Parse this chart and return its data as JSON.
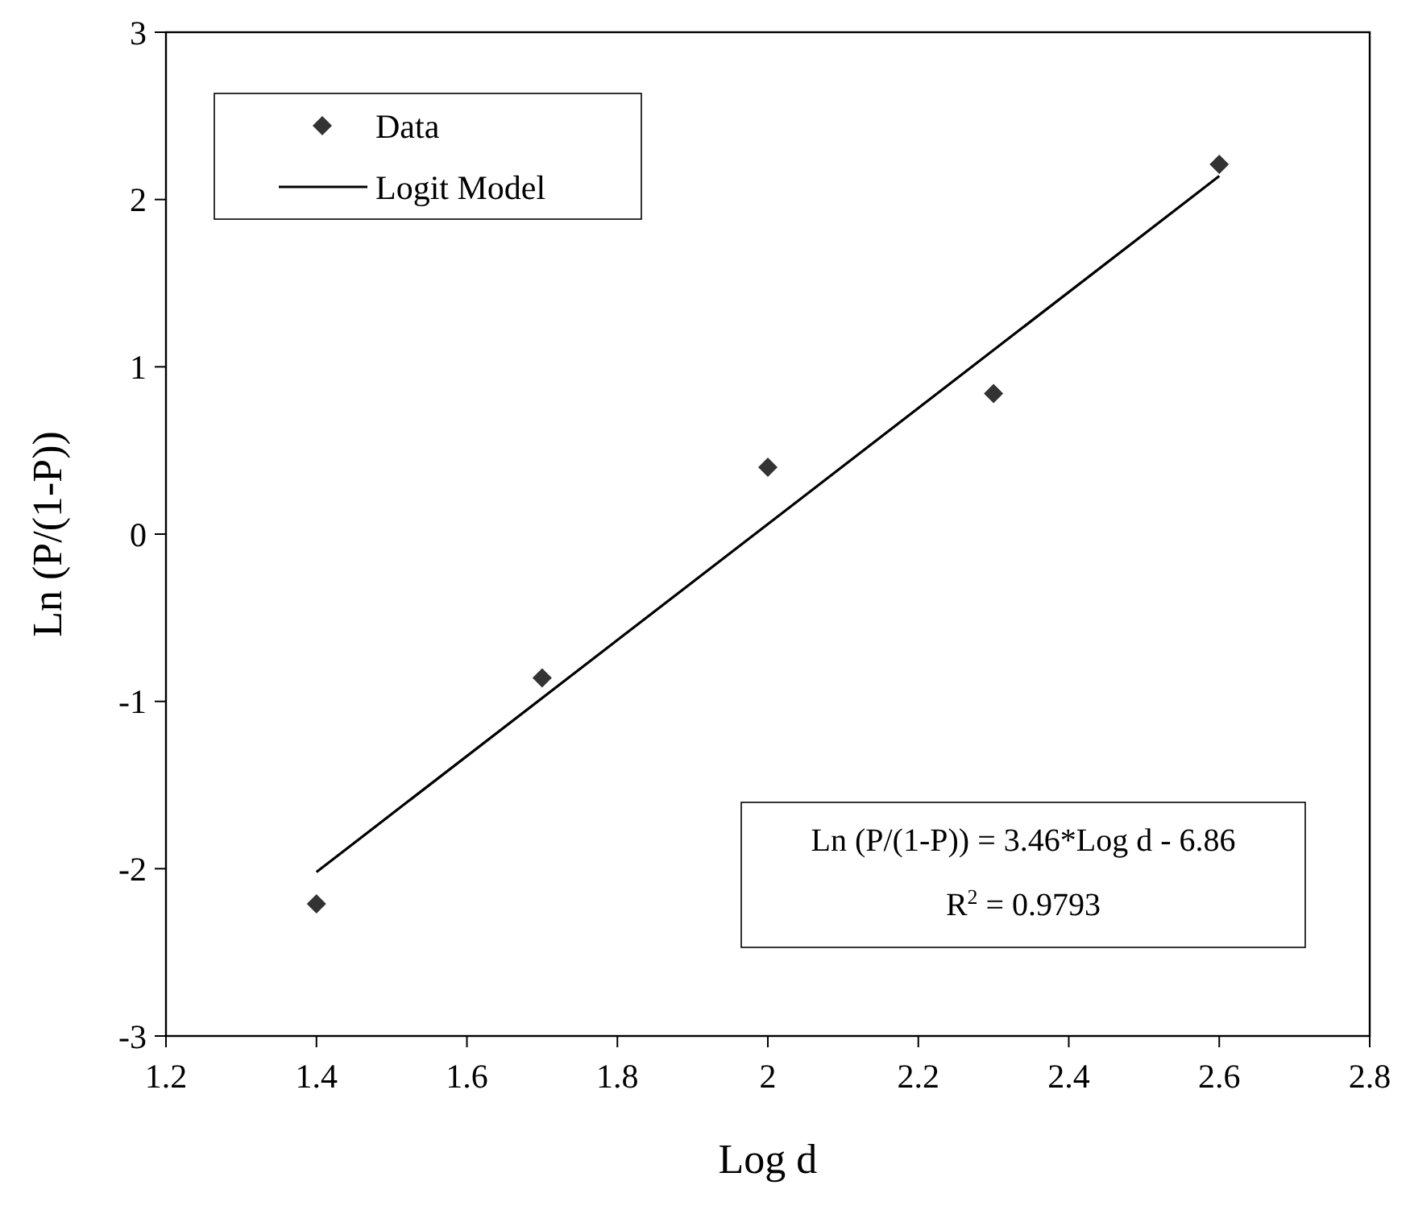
{
  "chart_data": {
    "type": "scatter",
    "xlabel": "Log d",
    "ylabel": "Ln (P/(1-P))",
    "xlim": [
      1.2,
      2.8
    ],
    "xticks": [
      1.2,
      1.4,
      1.6,
      1.8,
      2,
      2.2,
      2.4,
      2.6,
      2.8
    ],
    "ylim": [
      -3,
      3
    ],
    "yticks": [
      -3,
      -2,
      -1,
      0,
      1,
      2,
      3
    ],
    "grid": false,
    "legend": "top left",
    "series": [
      {
        "name": "Data",
        "marker": "diamond",
        "color": "#333333",
        "x": [
          1.4,
          1.7,
          2.0,
          2.3,
          2.6
        ],
        "values": [
          -2.21,
          -0.86,
          0.4,
          0.84,
          2.21
        ]
      },
      {
        "name": "Logit Model",
        "type": "line",
        "marker": "none",
        "line_style": "solid",
        "color": "#000000",
        "x": [
          1.4,
          2.6
        ],
        "values": [
          -2.02,
          2.14
        ]
      }
    ],
    "annotations": [
      "Ln (P/(1-P)) = 3.46*Log d  - 6.86",
      "R$^{2}$ = 0.9793"
    ]
  }
}
